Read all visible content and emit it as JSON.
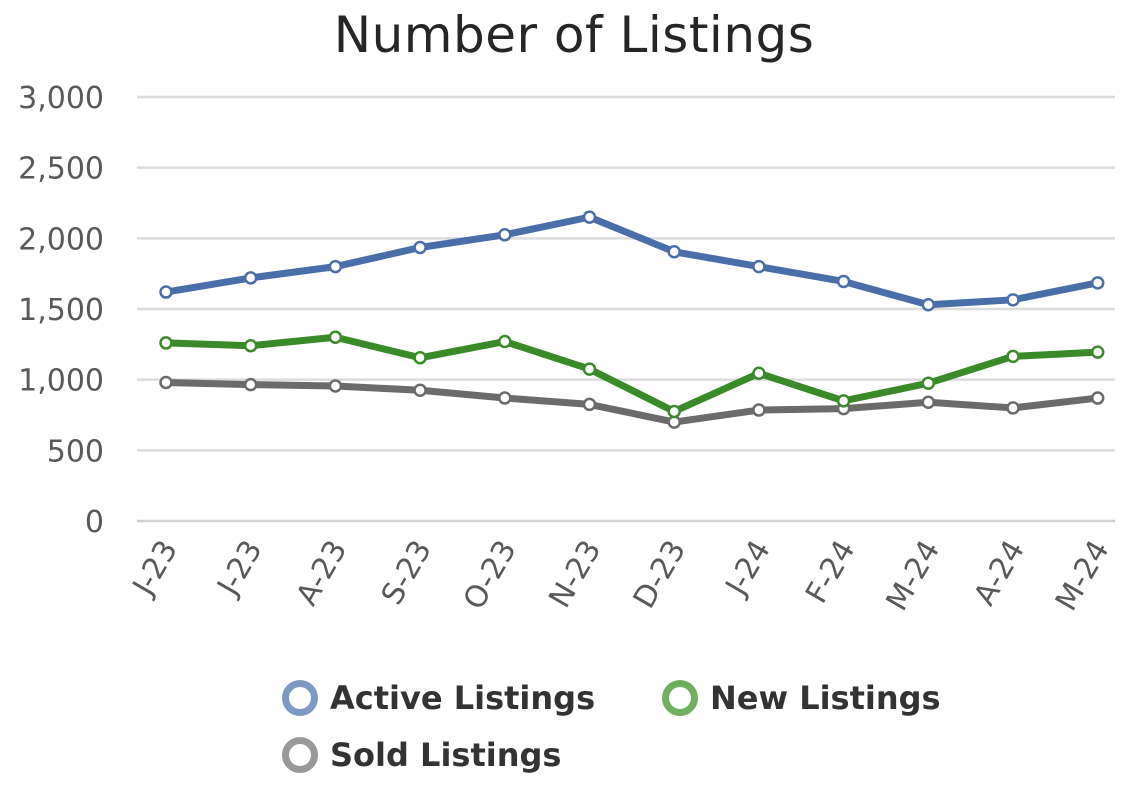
{
  "chart_data": {
    "type": "line",
    "title": "Number of Listings",
    "xlabel": "",
    "ylabel": "",
    "categories": [
      "J-23",
      "J-23",
      "A-23",
      "S-23",
      "O-23",
      "N-23",
      "D-23",
      "J-24",
      "F-24",
      "M-24",
      "A-24",
      "M-24"
    ],
    "ylim": [
      0,
      3000
    ],
    "yticks": [
      0,
      500,
      1000,
      1500,
      2000,
      2500,
      3000
    ],
    "ytick_labels": [
      "0",
      "500",
      "1,000",
      "1,500",
      "2,000",
      "2,500",
      "3,000"
    ],
    "grid": true,
    "legend_position": "bottom",
    "series": [
      {
        "name": "Active Listings",
        "color": "#4a6ea8",
        "legend_color": "#7d9ac4",
        "values": [
          1620,
          1720,
          1800,
          1935,
          2025,
          2150,
          1905,
          1800,
          1695,
          1530,
          1565,
          1685
        ]
      },
      {
        "name": "New Listings",
        "color": "#3a8a2a",
        "legend_color": "#6fb05f",
        "values": [
          1260,
          1240,
          1300,
          1155,
          1270,
          1075,
          775,
          1045,
          850,
          975,
          1165,
          1195
        ]
      },
      {
        "name": "Sold Listings",
        "color": "#6b6b6b",
        "legend_color": "#999999",
        "values": [
          980,
          965,
          955,
          925,
          870,
          825,
          700,
          785,
          795,
          840,
          800,
          870
        ]
      }
    ]
  }
}
